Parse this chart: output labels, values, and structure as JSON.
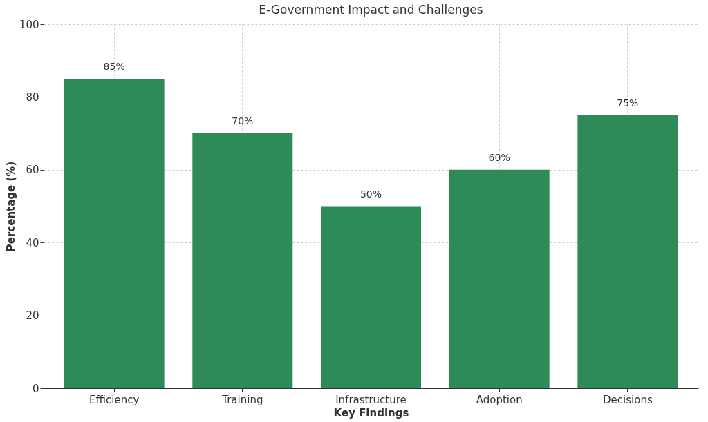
{
  "chart_data": {
    "type": "bar",
    "title": "E-Government Impact and Challenges",
    "xlabel": "Key Findings",
    "ylabel": "Percentage (%)",
    "categories": [
      "Efficiency",
      "Training",
      "Infrastructure",
      "Adoption",
      "Decisions"
    ],
    "values": [
      85,
      70,
      50,
      60,
      75
    ],
    "value_labels": [
      "85%",
      "70%",
      "50%",
      "60%",
      "75%"
    ],
    "color": "#2e8b57",
    "ylim": [
      0,
      100
    ],
    "yticks": [
      0,
      20,
      40,
      60,
      80,
      100
    ],
    "grid": true
  }
}
